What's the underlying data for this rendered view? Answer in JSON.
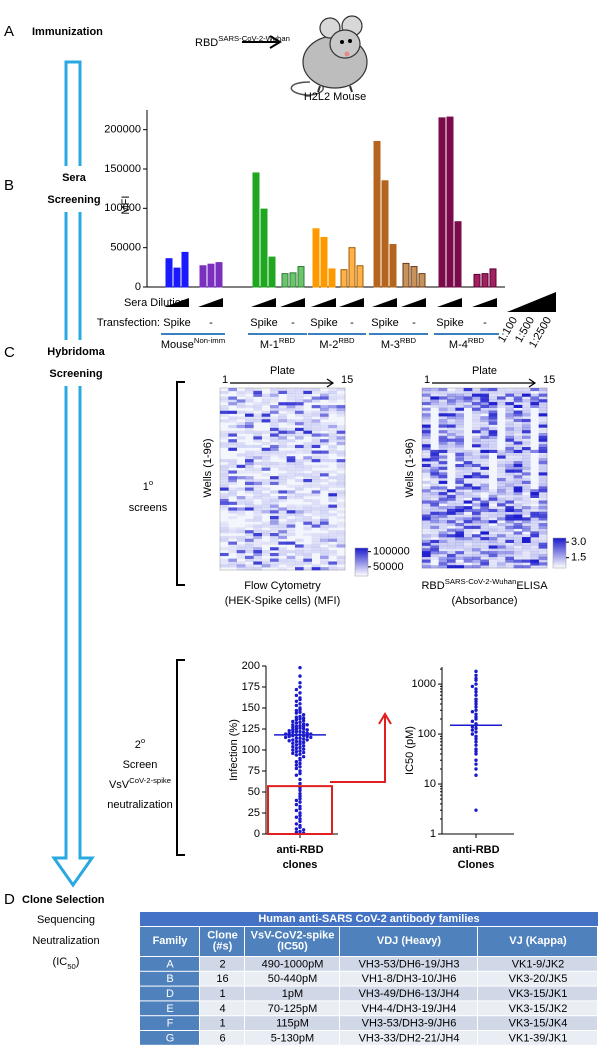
{
  "panels": {
    "A": {
      "letter": "A",
      "title": "Immunization",
      "antigen": "RBD",
      "antigen_sup": "SARS-CoV-2-Wuhan",
      "mouse": "H2L2 Mouse"
    },
    "B": {
      "letter": "B",
      "title": [
        "Sera",
        "Screening"
      ]
    },
    "C": {
      "letter": "C",
      "title": [
        "Hybridoma",
        "Screening"
      ],
      "primary": {
        "ordinal": "1",
        "ordinal_sup": "o",
        "label": "screens"
      },
      "secondary": {
        "ordinal": "2",
        "ordinal_sup": "o",
        "label": "Screen",
        "assay": "VsV",
        "assay_sup": "CoV-2-spike",
        "assay_label": "neutralization"
      }
    },
    "D": {
      "letter": "D",
      "title": "Clone Selection",
      "steps": [
        "Sequencing",
        "Neutralization"
      ],
      "ic50": [
        "(IC",
        "50",
        ")"
      ]
    }
  },
  "chart_data": [
    {
      "type": "bar",
      "ylabel": "MFI",
      "ylim": [
        0,
        225000
      ],
      "yticks": [
        0,
        50000,
        100000,
        150000,
        200000
      ],
      "groups": [
        {
          "color": "#1a1aff",
          "stroke": "#1a1aff",
          "values": [
            36000,
            24000,
            44000
          ]
        },
        {
          "color": "#7b2fbf",
          "stroke": "#7b2fbf",
          "values": [
            27000,
            29000,
            31000
          ]
        },
        {
          "color": "#1fa81f",
          "stroke": "#1fa81f",
          "values": [
            145000,
            99000,
            38000
          ]
        },
        {
          "color": "#6cc46c",
          "stroke": "#2e7d32",
          "values": [
            17000,
            18000,
            26000
          ]
        },
        {
          "color": "#ff9900",
          "stroke": "#ff9900",
          "values": [
            74000,
            63000,
            23000
          ]
        },
        {
          "color": "#ffb347",
          "stroke": "#a05a00",
          "values": [
            22000,
            50000,
            27000
          ]
        },
        {
          "color": "#b5651d",
          "stroke": "#b5651d",
          "values": [
            185000,
            135000,
            54000
          ]
        },
        {
          "color": "#c8935a",
          "stroke": "#6b3a10",
          "values": [
            30000,
            26000,
            17000
          ]
        },
        {
          "color": "#7a0a4a",
          "stroke": "#7a0a4a",
          "values": [
            215000,
            216000,
            83000
          ]
        },
        {
          "color": "#a02060",
          "stroke": "#5a0030",
          "values": [
            16000,
            17000,
            23000
          ]
        }
      ],
      "dilution_label": "Sera Dilution:",
      "transfection_label": "Transfection:",
      "transfections": [
        "Spike",
        "-",
        "Spike",
        "-",
        "Spike",
        "-",
        "Spike",
        "-",
        "Spike",
        "-"
      ],
      "mice": [
        {
          "name": "Mouse",
          "sup": "Non-imm"
        },
        {
          "name": "M-1",
          "sup": "RBD"
        },
        {
          "name": "M-2",
          "sup": "RBD"
        },
        {
          "name": "M-3",
          "sup": "RBD"
        },
        {
          "name": "M-4",
          "sup": "RBD"
        }
      ],
      "dilutions": [
        "1:100",
        "1:500",
        "1:2500"
      ]
    },
    {
      "type": "swarm",
      "ylabel": "Infection (%)",
      "xlabel": [
        "anti-RBD",
        "clones"
      ],
      "color": "#1a1acc",
      "log_scale": false,
      "ylim": [
        0,
        200
      ],
      "yticks": [
        0,
        25,
        50,
        75,
        100,
        125,
        150,
        175,
        200
      ],
      "median": 118,
      "box": [
        0,
        57
      ],
      "box_color": "#e02020",
      "values": [
        198,
        188,
        180,
        175,
        172,
        168,
        165,
        162,
        160,
        158,
        155,
        153,
        150,
        148,
        147,
        145,
        144,
        142,
        140,
        139,
        138,
        137,
        136,
        135,
        134,
        133,
        132,
        131,
        130,
        130,
        129,
        128,
        128,
        127,
        126,
        125,
        125,
        124,
        124,
        123,
        122,
        122,
        121,
        121,
        120,
        120,
        119,
        119,
        118,
        118,
        117,
        117,
        116,
        116,
        115,
        115,
        114,
        114,
        113,
        112,
        112,
        111,
        110,
        110,
        109,
        108,
        107,
        106,
        105,
        104,
        103,
        102,
        101,
        100,
        99,
        98,
        97,
        96,
        95,
        94,
        92,
        90,
        88,
        86,
        84,
        82,
        80,
        78,
        75,
        72,
        70,
        65,
        60,
        55,
        52,
        48,
        45,
        42,
        40,
        38,
        35,
        33,
        30,
        28,
        25,
        22,
        20,
        18,
        15,
        12,
        10,
        8,
        6,
        5,
        3,
        2,
        1
      ]
    },
    {
      "type": "swarm",
      "ylabel": "IC50 (pM)",
      "xlabel": [
        "anti-RBD",
        "Clones"
      ],
      "color": "#1a1acc",
      "log_scale": true,
      "ylim": [
        1,
        2200
      ],
      "yticks": [
        1,
        10,
        100,
        1000
      ],
      "median": 150,
      "values": [
        1800,
        1500,
        1300,
        1200,
        1000,
        900,
        800,
        700,
        600,
        500,
        450,
        400,
        350,
        300,
        280,
        250,
        220,
        200,
        180,
        160,
        150,
        140,
        130,
        120,
        110,
        100,
        90,
        80,
        70,
        60,
        50,
        45,
        40,
        30,
        25,
        20,
        15,
        3
      ]
    }
  ],
  "heatmaps": [
    {
      "plate": "Plate",
      "first": "1",
      "last": "15",
      "wells": "Wells (1-96)",
      "caption": [
        "Flow Cytometry",
        "(HEK-Spike cells) (MFI)"
      ],
      "caption_sup": null,
      "colorbar_lim": [
        20000,
        112000
      ],
      "colorbar_ticks": [
        100000,
        50000
      ]
    },
    {
      "plate": "Plate",
      "first": "1",
      "last": "15",
      "wells": "Wells (1-96)",
      "caption": [
        "RBD",
        "ELISA",
        "(Absorbance)"
      ],
      "caption_sup": "SARS-CoV-2-Wuhan",
      "colorbar_lim": [
        0.5,
        3.4
      ],
      "colorbar_ticks": [
        {
          "value": 3,
          "label": "3.0"
        },
        1.5
      ]
    }
  ],
  "table": {
    "title": "Human anti-SARS CoV-2 antibody families",
    "header": [
      [
        "Family"
      ],
      [
        "Clone",
        "(#s)"
      ],
      [
        "VsV-CoV2-spike",
        "(IC50)"
      ],
      [
        "VDJ (Heavy)"
      ],
      [
        "VJ (Kappa)"
      ]
    ],
    "rows": [
      [
        "A",
        2,
        "490-1000pM",
        "VH3-53/DH6-19/JH3",
        "VK1-9/JK2"
      ],
      [
        "B",
        16,
        "50-440pM",
        "VH1-8/DH3-10/JH6",
        "VK3-20/JK5"
      ],
      [
        "D",
        1,
        "1pM",
        "VH3-49/DH6-13/JH4",
        "VK3-15/JK1"
      ],
      [
        "E",
        4,
        "70-125pM",
        "VH4-4/DH3-19/JH4",
        "VK3-15/JK2"
      ],
      [
        "F",
        1,
        "115pM",
        "VH3-53/DH3-9/JH6",
        "VK3-15/JK4"
      ],
      [
        "G",
        6,
        "5-130pM",
        "VH3-33/DH2-21/JH4",
        "VK1-39/JK1"
      ]
    ]
  }
}
